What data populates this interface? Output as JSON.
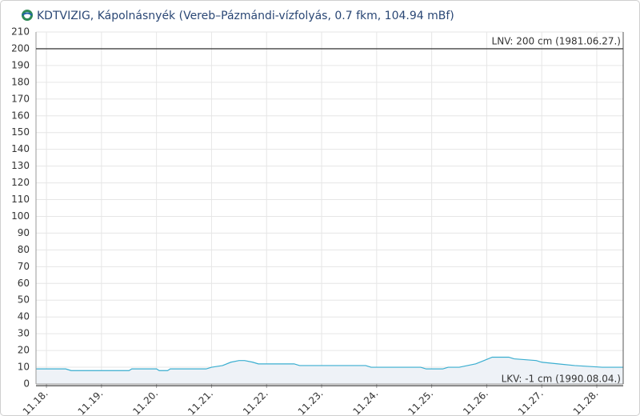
{
  "chart_data": {
    "type": "area",
    "title": "KDTVIZIG, Kápolnásnyék (Vereb–Pázmándi-vízfolyás, 0.7 fkm, 104.94 mBf)",
    "x": [
      17.81,
      18.35,
      18.45,
      19.5,
      19.55,
      20.0,
      20.05,
      20.2,
      20.25,
      20.9,
      21.0,
      21.2,
      21.35,
      21.5,
      21.6,
      21.75,
      21.85,
      22.5,
      22.6,
      23.8,
      23.9,
      24.8,
      24.9,
      25.2,
      25.3,
      25.5,
      25.65,
      25.8,
      25.95,
      26.1,
      26.4,
      26.5,
      26.9,
      27.0,
      27.3,
      27.6,
      28.1,
      28.48
    ],
    "series": [
      {
        "color": "#3aaed0",
        "fill": "#eef2f7",
        "values": [
          9,
          9,
          8,
          8,
          9,
          9,
          8,
          8,
          9,
          9,
          10,
          11,
          13,
          14,
          14,
          13,
          12,
          12,
          11,
          11,
          10,
          10,
          9,
          9,
          10,
          10,
          11,
          12,
          14,
          16,
          16,
          15,
          14,
          13,
          12,
          11,
          10,
          10
        ]
      }
    ],
    "xlim": [
      17.81,
      28.48
    ],
    "xticks": [
      {
        "value": 18,
        "label": "11.18."
      },
      {
        "value": 19,
        "label": "11.19."
      },
      {
        "value": 20,
        "label": "11.20."
      },
      {
        "value": 21,
        "label": "11.21."
      },
      {
        "value": 22,
        "label": "11.22."
      },
      {
        "value": 23,
        "label": "11.23."
      },
      {
        "value": 24,
        "label": "11.24."
      },
      {
        "value": 25,
        "label": "11.25."
      },
      {
        "value": 26,
        "label": "11.26."
      },
      {
        "value": 27,
        "label": "11.27."
      },
      {
        "value": 28,
        "label": "11.28."
      }
    ],
    "ylim": [
      0,
      210
    ],
    "yticks": [
      0,
      10,
      20,
      30,
      40,
      50,
      60,
      70,
      80,
      90,
      100,
      110,
      120,
      130,
      140,
      150,
      160,
      170,
      180,
      190,
      200,
      210
    ],
    "grid": true,
    "reference_lines": [
      {
        "value": 200,
        "label": "LNV: 200 cm (1981.06.27.)"
      },
      {
        "value": -1,
        "label": "LKV: -1 cm (1990.08.04.)"
      }
    ]
  }
}
